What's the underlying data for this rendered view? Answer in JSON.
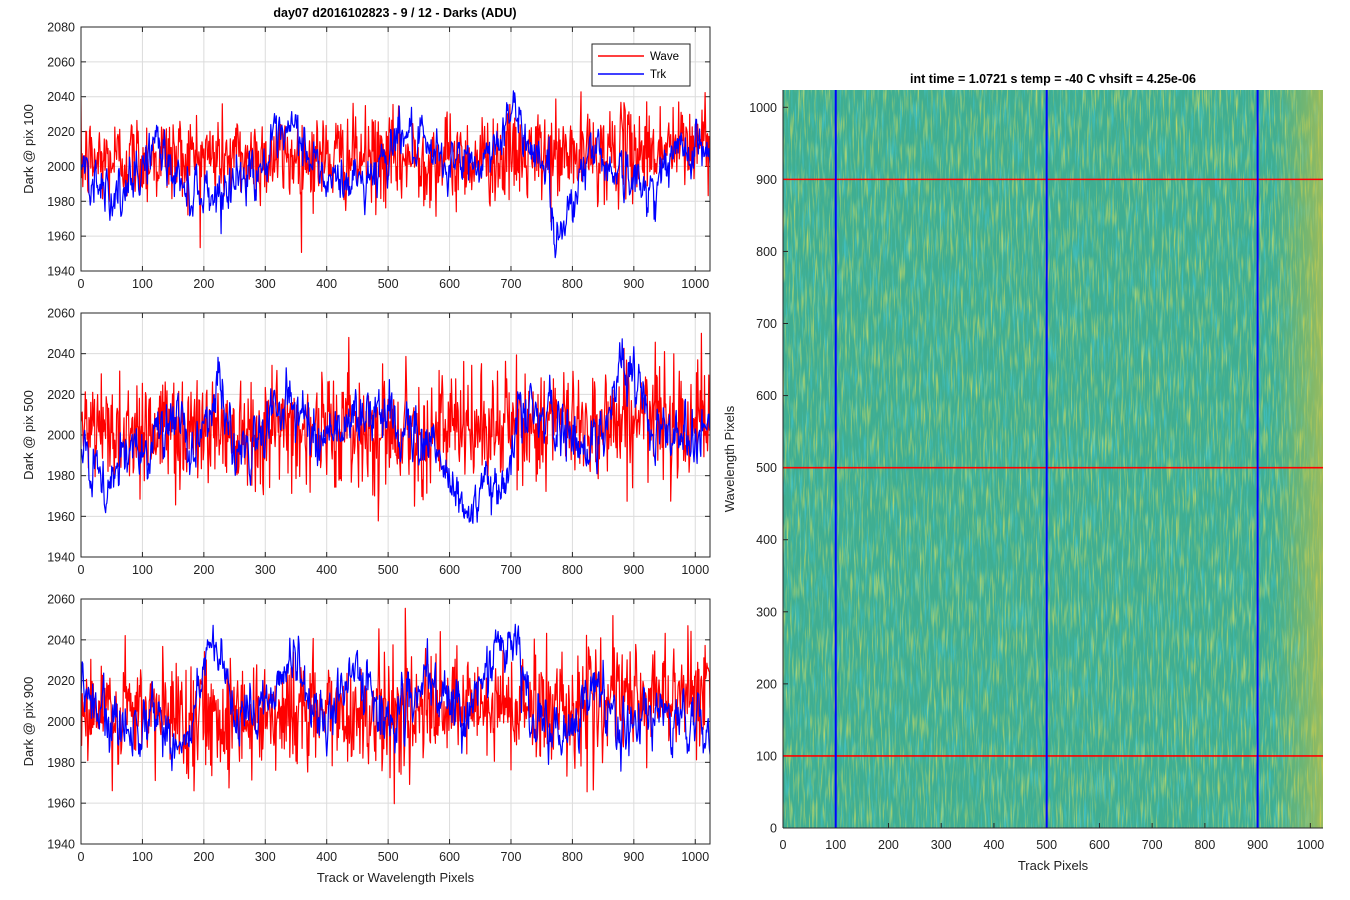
{
  "figure": {
    "title": "day07 d2016102823 - 9 / 12 - Darks (ADU)",
    "image_title": "int time = 1.0721 s    temp = -40 C    vhsift = 4.25e-06"
  },
  "chart_data": [
    {
      "type": "line",
      "ylabel": "Dark @ pix 100",
      "xlabel": "",
      "xlim": [
        0,
        1024
      ],
      "ylim": [
        1940,
        2080
      ],
      "xticks": [
        0,
        100,
        200,
        300,
        400,
        500,
        600,
        700,
        800,
        900,
        1000
      ],
      "yticks": [
        1940,
        1960,
        1980,
        2000,
        2020,
        2040,
        2060,
        2080
      ],
      "grid": true,
      "legend": {
        "position": "top-right",
        "entries": [
          "Wave",
          "Trk"
        ]
      },
      "series": [
        {
          "name": "Wave",
          "color": "#ff0000",
          "kind": "noise",
          "baseline": 2005,
          "noise_sd": 13,
          "trend": [
            [
              0,
              2003
            ],
            [
              200,
              2006
            ],
            [
              400,
              2005
            ],
            [
              600,
              2004
            ],
            [
              800,
              2006
            ],
            [
              1000,
              2012
            ],
            [
              1024,
              2020
            ]
          ]
        },
        {
          "name": "Trk",
          "color": "#0000ff",
          "kind": "smooth",
          "baseline": 1995,
          "noise_sd": 6,
          "trend": [
            [
              0,
              2000
            ],
            [
              40,
              1990
            ],
            [
              70,
              1978
            ],
            [
              120,
              2015
            ],
            [
              160,
              1990
            ],
            [
              220,
              1985
            ],
            [
              300,
              2003
            ],
            [
              350,
              2020
            ],
            [
              400,
              1990
            ],
            [
              470,
              1993
            ],
            [
              520,
              2022
            ],
            [
              560,
              2005
            ],
            [
              650,
              2000
            ],
            [
              700,
              2030
            ],
            [
              760,
              2000
            ],
            [
              770,
              1955
            ],
            [
              800,
              1983
            ],
            [
              830,
              2010
            ],
            [
              870,
              2000
            ],
            [
              920,
              1985
            ],
            [
              960,
              2003
            ],
            [
              1000,
              2016
            ],
            [
              1024,
              2005
            ]
          ]
        }
      ]
    },
    {
      "type": "line",
      "ylabel": "Dark @ pix 500",
      "xlabel": "",
      "xlim": [
        0,
        1024
      ],
      "ylim": [
        1940,
        2060
      ],
      "xticks": [
        0,
        100,
        200,
        300,
        400,
        500,
        600,
        700,
        800,
        900,
        1000
      ],
      "yticks": [
        1940,
        1960,
        1980,
        2000,
        2020,
        2040,
        2060
      ],
      "grid": true,
      "series": [
        {
          "name": "Wave",
          "color": "#ff0000",
          "kind": "noise",
          "baseline": 2004,
          "noise_sd": 14,
          "trend": [
            [
              0,
              2002
            ],
            [
              300,
              2004
            ],
            [
              600,
              2002
            ],
            [
              900,
              2008
            ],
            [
              1024,
              2010
            ]
          ]
        },
        {
          "name": "Trk",
          "color": "#0000ff",
          "kind": "smooth",
          "baseline": 2000,
          "noise_sd": 6,
          "trend": [
            [
              0,
              1990
            ],
            [
              40,
              1972
            ],
            [
              90,
              1995
            ],
            [
              150,
              2008
            ],
            [
              180,
              1990
            ],
            [
              220,
              2025
            ],
            [
              260,
              1985
            ],
            [
              330,
              2020
            ],
            [
              380,
              2000
            ],
            [
              420,
              2005
            ],
            [
              480,
              2010
            ],
            [
              560,
              2000
            ],
            [
              630,
              1962
            ],
            [
              680,
              1975
            ],
            [
              720,
              2015
            ],
            [
              790,
              2000
            ],
            [
              840,
              1995
            ],
            [
              880,
              2035
            ],
            [
              930,
              2010
            ],
            [
              960,
              2000
            ],
            [
              1024,
              2005
            ]
          ]
        }
      ]
    },
    {
      "type": "line",
      "ylabel": "Dark @ pix 900",
      "xlabel": "Track or Wavelength Pixels",
      "xlim": [
        0,
        1024
      ],
      "ylim": [
        1940,
        2060
      ],
      "xticks": [
        0,
        100,
        200,
        300,
        400,
        500,
        600,
        700,
        800,
        900,
        1000
      ],
      "yticks": [
        1940,
        1960,
        1980,
        2000,
        2020,
        2040,
        2060
      ],
      "grid": true,
      "series": [
        {
          "name": "Wave",
          "color": "#ff0000",
          "kind": "noise",
          "baseline": 2005,
          "noise_sd": 14,
          "trend": [
            [
              0,
              2003
            ],
            [
              300,
              2004
            ],
            [
              600,
              2005
            ],
            [
              900,
              2010
            ],
            [
              1024,
              2018
            ]
          ]
        },
        {
          "name": "Trk",
          "color": "#0000ff",
          "kind": "smooth",
          "baseline": 2005,
          "noise_sd": 6,
          "trend": [
            [
              0,
              2015
            ],
            [
              50,
              1995
            ],
            [
              120,
              2005
            ],
            [
              170,
              1985
            ],
            [
              210,
              2038
            ],
            [
              260,
              1995
            ],
            [
              340,
              2030
            ],
            [
              400,
              1998
            ],
            [
              450,
              2025
            ],
            [
              500,
              2000
            ],
            [
              560,
              2015
            ],
            [
              620,
              2005
            ],
            [
              700,
              2042
            ],
            [
              740,
              2000
            ],
            [
              800,
              1988
            ],
            [
              830,
              2020
            ],
            [
              880,
              1995
            ],
            [
              940,
              2005
            ],
            [
              980,
              2000
            ],
            [
              1024,
              1995
            ]
          ]
        }
      ]
    },
    {
      "type": "heatmap",
      "title": "int time = 1.0721 s    temp = -40 C    vhsift = 4.25e-06",
      "xlabel": "Track Pixels",
      "ylabel": "Wavelength Pixels",
      "xlim": [
        0,
        1024
      ],
      "ylim": [
        0,
        1024
      ],
      "xticks": [
        0,
        100,
        200,
        300,
        400,
        500,
        600,
        700,
        800,
        900,
        1000
      ],
      "yticks": [
        0,
        100,
        200,
        300,
        400,
        500,
        600,
        700,
        800,
        900,
        1000
      ],
      "colormap": "parula",
      "value_note": "dark level ~2000 ADU, higher toward x > 950",
      "marker_lines": {
        "vertical_x": [
          100,
          500,
          900
        ],
        "vertical_color": "#0000ff",
        "horizontal_y": [
          100,
          500,
          900
        ],
        "horizontal_color": "#ff0000"
      }
    }
  ]
}
